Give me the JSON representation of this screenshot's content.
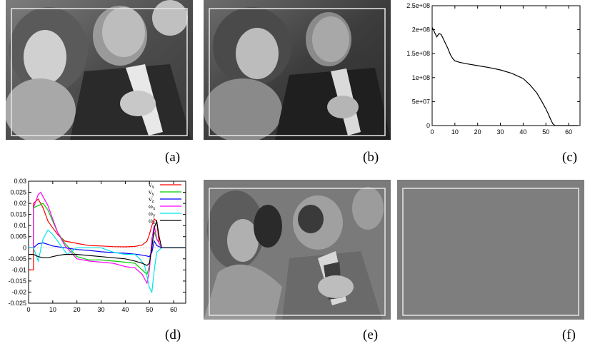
{
  "figure": {
    "captions": [
      "(a)",
      "(b)",
      "(c)",
      "(d)",
      "(e)",
      "(f)"
    ]
  },
  "colors": {
    "photo_a_bg": "#5a5a5a",
    "photo_b_bg": "#474747",
    "photo_e_bg": "#7a7a7a",
    "photo_f_bg": "#7e7e7e",
    "frame": "#e6e6e6"
  },
  "chart_data": [
    {
      "type": "line",
      "title": "",
      "xlabel": "",
      "ylabel": "",
      "xlim": [
        0,
        65
      ],
      "ylim": [
        0,
        250000000
      ],
      "xticks": [
        "0",
        "10",
        "20",
        "30",
        "40",
        "50",
        "60"
      ],
      "yticks": [
        "0",
        "5e+07",
        "1e+08",
        "1.5e+08",
        "2e+08",
        "2.5e+08"
      ],
      "xtick_values": [
        0,
        10,
        20,
        30,
        40,
        50,
        60
      ],
      "ytick_values": [
        0,
        50000000,
        100000000,
        150000000,
        200000000,
        250000000
      ],
      "grid": false,
      "series": [
        {
          "color": "#000000",
          "x": [
            0,
            1,
            2,
            3,
            4,
            5,
            6,
            7,
            8,
            9,
            10,
            12,
            15,
            20,
            25,
            30,
            35,
            40,
            43,
            46,
            48,
            50,
            51,
            52,
            53,
            54,
            55,
            60,
            64
          ],
          "y": [
            205000000,
            195000000,
            185000000,
            192000000,
            190000000,
            180000000,
            170000000,
            160000000,
            148000000,
            140000000,
            135000000,
            132000000,
            129000000,
            125000000,
            121000000,
            116000000,
            109000000,
            98000000,
            85000000,
            68000000,
            52000000,
            35000000,
            25000000,
            14000000,
            4000000,
            0,
            0,
            0,
            0
          ]
        }
      ]
    },
    {
      "type": "line",
      "title": "",
      "xlabel": "",
      "ylabel": "",
      "xlim": [
        0,
        65
      ],
      "ylim": [
        -0.025,
        0.03
      ],
      "xticks": [
        "0",
        "10",
        "20",
        "30",
        "40",
        "50",
        "60"
      ],
      "yticks": [
        "-0.025",
        "-0.02",
        "-0.015",
        "-0.01",
        "-0.005",
        "0",
        "0.005",
        "0.01",
        "0.015",
        "0.02",
        "0.025",
        "0.03"
      ],
      "xtick_values": [
        0,
        10,
        20,
        30,
        40,
        50,
        60
      ],
      "ytick_values": [
        -0.025,
        -0.02,
        -0.015,
        -0.01,
        -0.005,
        0,
        0.005,
        0.01,
        0.015,
        0.02,
        0.025,
        0.03
      ],
      "grid": false,
      "legend_position": "top-right",
      "series": [
        {
          "name": "v_x",
          "color": "#ff0000",
          "x": [
            0,
            2,
            2,
            4,
            6,
            8,
            10,
            12,
            15,
            20,
            25,
            30,
            35,
            40,
            44,
            47,
            49,
            50,
            51,
            52,
            53,
            54,
            55,
            60,
            65
          ],
          "y": [
            -0.01,
            -0.01,
            0.02,
            0.022,
            0.018,
            0.012,
            0.009,
            0.006,
            0.003,
            0.002,
            0.001,
            0.0008,
            0.0005,
            0.0004,
            0.0006,
            0.0012,
            0.003,
            0.006,
            0.01,
            0.013,
            0.012,
            0.002,
            0,
            0,
            0
          ]
        },
        {
          "name": "v_y",
          "color": "#00cc00",
          "x": [
            0,
            2,
            2,
            4,
            6,
            8,
            10,
            12,
            15,
            20,
            25,
            30,
            35,
            40,
            44,
            47,
            49,
            50,
            51,
            52,
            53,
            55,
            60,
            65
          ],
          "y": [
            0,
            0,
            0.018,
            0.019,
            0.02,
            0.017,
            0.012,
            0.007,
            0.002,
            -0.004,
            -0.0055,
            -0.0055,
            -0.006,
            -0.0065,
            -0.007,
            -0.01,
            -0.012,
            -0.008,
            0.002,
            0.007,
            0.004,
            0,
            0,
            0
          ]
        },
        {
          "name": "v_z",
          "color": "#0000ff",
          "x": [
            0,
            2,
            4,
            6,
            8,
            10,
            15,
            20,
            25,
            30,
            35,
            40,
            45,
            48,
            50,
            51,
            52,
            53,
            55,
            60,
            65
          ],
          "y": [
            0,
            0,
            0.0018,
            0.0022,
            0.0015,
            0.0008,
            0,
            -0.0008,
            -0.0012,
            -0.0018,
            -0.0022,
            -0.0025,
            -0.003,
            -0.0035,
            -0.004,
            -0.002,
            0.003,
            0.001,
            0,
            0,
            0
          ]
        },
        {
          "name": "ω_x",
          "color": "#ff00ff",
          "x": [
            0,
            2,
            2,
            4,
            5,
            6,
            8,
            10,
            12,
            15,
            20,
            25,
            30,
            35,
            40,
            44,
            47,
            49,
            50,
            51,
            52,
            53,
            55,
            60,
            65
          ],
          "y": [
            0,
            0,
            0.018,
            0.024,
            0.025,
            0.023,
            0.019,
            0.013,
            0.007,
            0.001,
            -0.005,
            -0.006,
            -0.0065,
            -0.007,
            -0.0085,
            -0.009,
            -0.012,
            -0.016,
            -0.01,
            0.004,
            0.01,
            0.004,
            0,
            0,
            0
          ]
        },
        {
          "name": "ω_y",
          "color": "#00e5e5",
          "x": [
            0,
            2,
            4,
            6,
            8,
            10,
            12,
            14,
            16,
            20,
            25,
            30,
            35,
            40,
            44,
            46,
            48,
            50,
            51,
            52,
            53,
            55,
            60,
            65
          ],
          "y": [
            0,
            0,
            -0.006,
            0.004,
            0.008,
            0.006,
            0.003,
            0,
            -0.003,
            0,
            0,
            0,
            -0.002,
            -0.003,
            -0.003,
            -0.005,
            -0.008,
            -0.018,
            -0.02,
            -0.01,
            -0.002,
            0,
            0,
            0
          ]
        },
        {
          "name": "ω_z",
          "color": "#000000",
          "x": [
            0,
            2,
            4,
            6,
            8,
            10,
            12,
            15,
            20,
            25,
            30,
            35,
            40,
            44,
            47,
            49,
            50,
            51,
            52,
            53,
            54,
            55,
            60,
            65
          ],
          "y": [
            -0.003,
            -0.003,
            -0.004,
            -0.0045,
            -0.0045,
            -0.004,
            -0.0035,
            -0.003,
            -0.003,
            -0.0035,
            -0.004,
            -0.0045,
            -0.005,
            -0.006,
            -0.007,
            -0.008,
            -0.007,
            0,
            0.009,
            0.012,
            0.005,
            0,
            0,
            0
          ]
        }
      ]
    }
  ]
}
